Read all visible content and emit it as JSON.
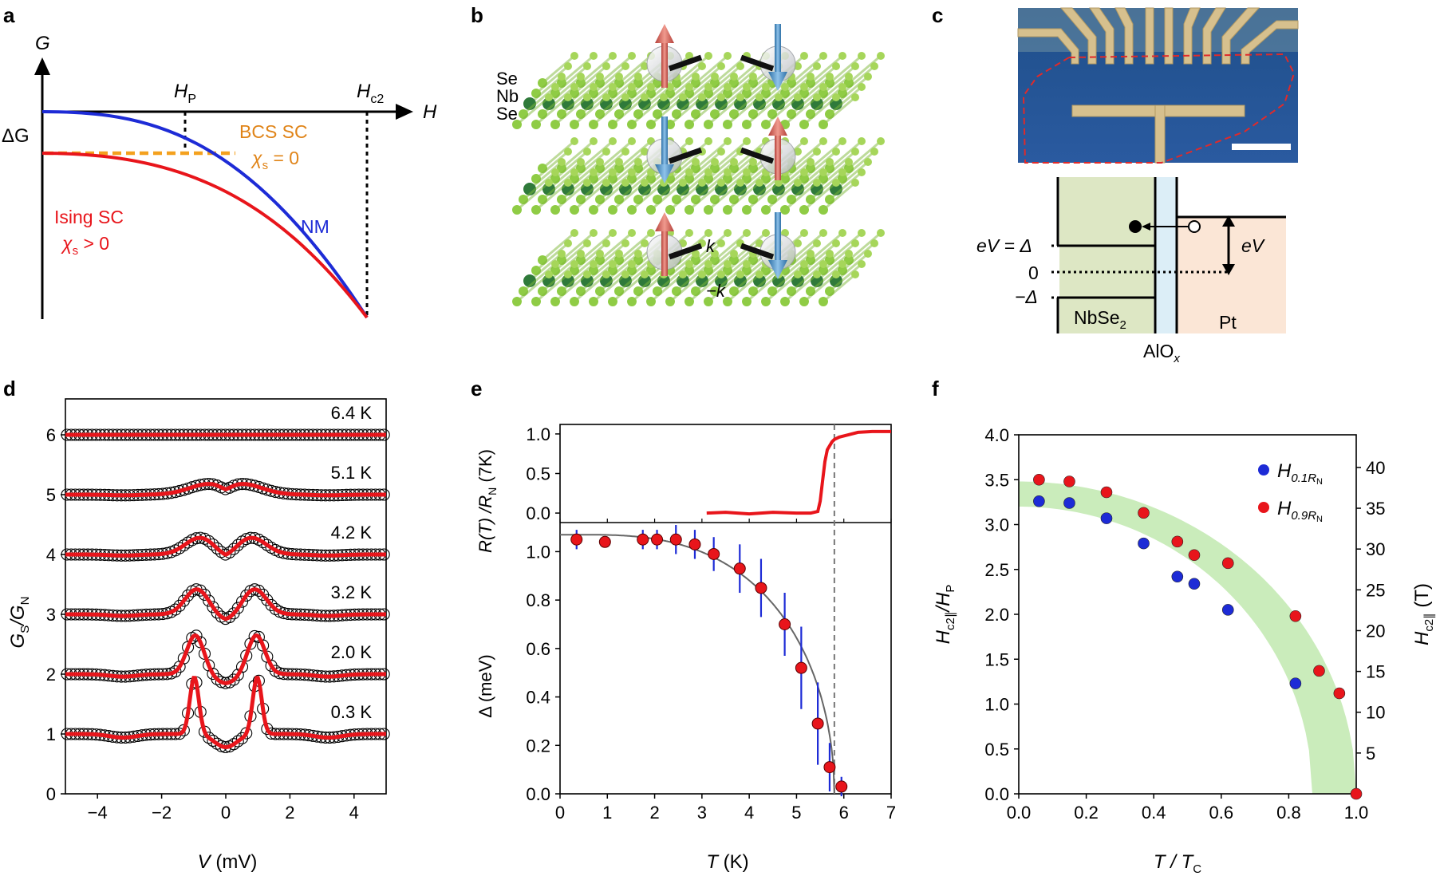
{
  "figure": {
    "panel_labels": [
      "a",
      "b",
      "c",
      "d",
      "e",
      "f"
    ]
  },
  "panel_a": {
    "y_axis_label": "G",
    "x_axis_label": "H",
    "hp_label": "H",
    "hp_sub": "P",
    "hc2_label": "H",
    "hc2_sub": "c2",
    "delta_g_label": "ΔG",
    "bcs_label": "BCS SC",
    "bcs_chi": "χ",
    "bcs_chi_sub": "s",
    "bcs_chi_value": " = 0",
    "nm_label": "NM",
    "ising_label": "Ising SC",
    "ising_chi": "χ",
    "ising_chi_sub": "s",
    "ising_chi_value": " > 0",
    "colors": {
      "nm": "#1d2bd6",
      "ising": "#e8151b",
      "bcs": "#f4a11e"
    }
  },
  "panel_b": {
    "layer_labels": [
      "Se",
      "Nb",
      "Se"
    ],
    "k_label": "k",
    "minus_k_label": "−k"
  },
  "panel_c": {
    "nbse2_label": "NbSe",
    "nbse2_sub": "2",
    "pt_label": "Pt",
    "alox_label": "AlO",
    "alox_sub": "x",
    "ev_eq_delta": "eV = Δ",
    "zero_label": "0",
    "minus_delta": "−Δ",
    "ev_label": "eV",
    "colors": {
      "nbse2": "#dde7c4",
      "pt": "#fbe6d6",
      "barrier": "#dceef7"
    }
  },
  "panel_d": {
    "ylabel_main": "G",
    "ylabel_sub_num": "S",
    "ylabel_slash": "/G",
    "ylabel_sub_den": "N",
    "xlabel_main": "V",
    "xlabel_unit": " (mV)"
  },
  "panel_e": {
    "top_ylabel": "R(T) /R",
    "top_ylabel_sub": "N",
    "top_ylabel_tail": " (7K)",
    "bottom_ylabel": "Δ (meV)",
    "xlabel_main": "T",
    "xlabel_unit": " (K)"
  },
  "panel_f": {
    "ylabel_left": "H",
    "ylabel_left_sub": "c2∥",
    "ylabel_left_tail": "/H",
    "ylabel_left_sub2": "P",
    "ylabel_right": "H",
    "ylabel_right_sub": "c2∥",
    "ylabel_right_unit": " (T)",
    "xlabel": "T / T",
    "xlabel_sub": "C",
    "legend": [
      {
        "main": "H",
        "sub": "0.1R",
        "subsub": "N",
        "color": "#1d2bd6"
      },
      {
        "main": "H",
        "sub": "0.9R",
        "subsub": "N",
        "color": "#e8151b"
      }
    ]
  },
  "chart_data": [
    {
      "type": "line",
      "panel": "d",
      "title": "",
      "xlabel": "V (mV)",
      "ylabel": "GS/GN",
      "xlim": [
        -5,
        5
      ],
      "ylim": [
        0,
        6.6
      ],
      "x_ticks": [
        -4,
        -2,
        0,
        2,
        4
      ],
      "x_tick_labels": [
        "−4",
        "−2",
        "0",
        "2",
        "4"
      ],
      "y_ticks": [
        0,
        1,
        2,
        3,
        4,
        5,
        6
      ],
      "y_tick_labels": [
        "0",
        "1",
        "2",
        "3",
        "4",
        "5",
        "6"
      ],
      "series": [
        {
          "name": "0.3 K",
          "offset": 1,
          "peak_height": 0.95,
          "peak_position": 0.98,
          "peak_width": 0.2
        },
        {
          "name": "2.0 K",
          "offset": 2,
          "peak_height": 0.65,
          "peak_position": 0.95,
          "peak_width": 0.38
        },
        {
          "name": "3.2 K",
          "offset": 3,
          "peak_height": 0.42,
          "peak_position": 0.9,
          "peak_width": 0.52
        },
        {
          "name": "4.2 K",
          "offset": 4,
          "peak_height": 0.28,
          "peak_position": 0.8,
          "peak_width": 0.65
        },
        {
          "name": "5.1 K",
          "offset": 5,
          "peak_height": 0.18,
          "peak_position": 0.5,
          "peak_width": 0.9
        },
        {
          "name": "6.4 K",
          "offset": 6,
          "peak_height": 0,
          "peak_position": 0,
          "peak_width": 1
        }
      ]
    },
    {
      "type": "line",
      "panel": "e-top",
      "xlabel": "",
      "ylabel": "R(T) /RN (7K)",
      "xlim": [
        0,
        7
      ],
      "ylim": [
        -0.12,
        1.12
      ],
      "y_ticks": [
        0,
        0.5,
        1.0
      ],
      "y_tick_labels": [
        "0.0",
        "0.5",
        "1.0"
      ],
      "x": [
        3.1,
        3.5,
        4.0,
        4.5,
        5.0,
        5.3,
        5.45,
        5.5,
        5.55,
        5.6,
        5.65,
        5.7,
        5.75,
        5.8,
        5.9,
        6.1,
        6.3,
        6.6,
        7.0
      ],
      "values": [
        0.0,
        0.01,
        -0.01,
        0.01,
        0.0,
        0.0,
        0.02,
        0.15,
        0.4,
        0.65,
        0.8,
        0.85,
        0.9,
        0.93,
        0.96,
        0.99,
        1.02,
        1.03,
        1.03
      ]
    },
    {
      "type": "scatter",
      "panel": "e-bottom",
      "xlabel": "T (K)",
      "ylabel": "Δ (meV)",
      "xlim": [
        0,
        7
      ],
      "ylim": [
        0,
        1.12
      ],
      "x_ticks": [
        0,
        1,
        2,
        3,
        4,
        5,
        6,
        7
      ],
      "x_tick_labels": [
        "0",
        "1",
        "2",
        "3",
        "4",
        "5",
        "6",
        "7"
      ],
      "y_ticks": [
        0,
        0.2,
        0.4,
        0.6,
        0.8,
        1.0
      ],
      "y_tick_labels": [
        "0.0",
        "0.2",
        "0.4",
        "0.6",
        "0.8",
        "1.0"
      ],
      "tc_dashed_line": 5.8,
      "fit_delta0": 1.07,
      "fit_tc": 5.8,
      "points": [
        {
          "x": 0.35,
          "y": 1.05,
          "err": 0.04
        },
        {
          "x": 0.95,
          "y": 1.04,
          "err": 0.0
        },
        {
          "x": 1.75,
          "y": 1.05,
          "err": 0.04
        },
        {
          "x": 2.05,
          "y": 1.05,
          "err": 0.04
        },
        {
          "x": 2.45,
          "y": 1.05,
          "err": 0.06
        },
        {
          "x": 2.85,
          "y": 1.03,
          "err": 0.06
        },
        {
          "x": 3.25,
          "y": 0.99,
          "err": 0.07
        },
        {
          "x": 3.8,
          "y": 0.93,
          "err": 0.1
        },
        {
          "x": 4.25,
          "y": 0.85,
          "err": 0.12
        },
        {
          "x": 4.75,
          "y": 0.7,
          "err": 0.13
        },
        {
          "x": 5.1,
          "y": 0.52,
          "err": 0.17
        },
        {
          "x": 5.45,
          "y": 0.29,
          "err": 0.17
        },
        {
          "x": 5.7,
          "y": 0.11,
          "err": 0.1
        },
        {
          "x": 5.95,
          "y": 0.03,
          "err": 0.04
        }
      ]
    },
    {
      "type": "scatter",
      "panel": "f",
      "xlabel": "T/TC",
      "ylabel": "Hc2∥/HP",
      "ylabel_right": "Hc2∥ (T)",
      "xlim": [
        0,
        1
      ],
      "ylim": [
        0,
        4.0
      ],
      "ylim_right": [
        0,
        44
      ],
      "x_ticks": [
        0,
        0.2,
        0.4,
        0.6,
        0.8,
        1.0
      ],
      "x_tick_labels": [
        "0.0",
        "0.2",
        "0.4",
        "0.6",
        "0.8",
        "1.0"
      ],
      "y_ticks": [
        0,
        0.5,
        1.0,
        1.5,
        2.0,
        2.5,
        3.0,
        3.5,
        4.0
      ],
      "y_tick_labels": [
        "0.0",
        "0.5",
        "1.0",
        "1.5",
        "2.0",
        "2.5",
        "3.0",
        "3.5",
        "4.0"
      ],
      "y_ticks_right": [
        5,
        10,
        15,
        20,
        25,
        30,
        35,
        40
      ],
      "y_tick_labels_right": [
        "5",
        "10",
        "15",
        "20",
        "25",
        "30",
        "35",
        "40"
      ],
      "band": {
        "upper_at_zero": 3.48,
        "lower_at_zero": 3.2,
        "upper_end": 1.0,
        "lower_end": 0.87
      },
      "series": [
        {
          "name": "H0.1RN",
          "x": [
            0.06,
            0.15,
            0.26,
            0.37,
            0.47,
            0.52,
            0.62,
            0.82
          ],
          "y": [
            3.26,
            3.24,
            3.07,
            2.79,
            2.42,
            2.34,
            2.05,
            1.23
          ]
        },
        {
          "name": "H0.9RN",
          "x": [
            0.06,
            0.15,
            0.26,
            0.37,
            0.47,
            0.52,
            0.62,
            0.82,
            0.89,
            0.95,
            1.0
          ],
          "y": [
            3.5,
            3.48,
            3.36,
            3.13,
            2.81,
            2.66,
            2.57,
            1.98,
            1.37,
            1.12,
            0.0
          ]
        }
      ]
    }
  ]
}
